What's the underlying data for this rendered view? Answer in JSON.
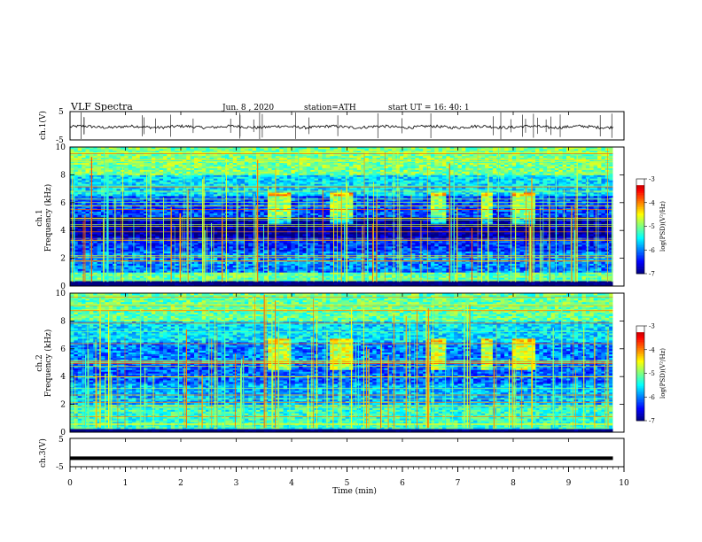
{
  "header": {
    "title": "VLF  Spectra",
    "date": "Jun. 8  , 2020",
    "station": "station=ATH",
    "start": "start  UT  =    16: 40: 1"
  },
  "chart_data": [
    {
      "type": "line",
      "name": "ch1-waveform",
      "ylabel": "ch.1(V)",
      "ylim": [
        -5,
        5
      ],
      "yticks": [
        "5",
        "-5"
      ],
      "xlim": [
        0,
        10
      ],
      "trace_mean_v": -0.4,
      "trace_noise_v": 0.5,
      "spike_count": 32
    },
    {
      "type": "heatmap",
      "name": "ch1-spectrogram",
      "ylabel": "ch.1\nFrequency (kHz)",
      "ylim": [
        0,
        10
      ],
      "yticks": [
        "0",
        "2",
        "4",
        "6",
        "8",
        "10"
      ],
      "xlim": [
        0,
        10
      ],
      "data_end_min": 9.8,
      "colorbar": {
        "label": "log(PSD)(V²/Hz)",
        "range": [
          -7,
          -3
        ],
        "ticks": [
          "-3",
          "-4",
          "-5",
          "-6",
          "-7"
        ]
      },
      "bands": [
        {
          "from_khz": 0.0,
          "to_khz": 0.35,
          "level": -7.2
        },
        {
          "from_khz": 0.35,
          "to_khz": 1.0,
          "level": -5.1
        },
        {
          "from_khz": 1.0,
          "to_khz": 2.5,
          "level": -6.0
        },
        {
          "from_khz": 2.5,
          "to_khz": 3.5,
          "level": -6.3
        },
        {
          "from_khz": 3.5,
          "to_khz": 5.0,
          "level": -6.9
        },
        {
          "from_khz": 5.0,
          "to_khz": 6.5,
          "level": -6.2
        },
        {
          "from_khz": 6.5,
          "to_khz": 8.0,
          "level": -5.6
        },
        {
          "from_khz": 8.0,
          "to_khz": 10.0,
          "level": -5.0
        }
      ],
      "bursts_min": [
        {
          "from": 3.6,
          "to": 4.0
        },
        {
          "from": 4.7,
          "to": 5.1
        },
        {
          "from": 6.5,
          "to": 6.8
        },
        {
          "from": 7.4,
          "to": 7.6
        },
        {
          "from": 8.0,
          "to": 8.4
        }
      ]
    },
    {
      "type": "heatmap",
      "name": "ch2-spectrogram",
      "ylabel": "ch.2\nFrequency (kHz)",
      "ylim": [
        0,
        10
      ],
      "yticks": [
        "0",
        "2",
        "4",
        "6",
        "8",
        "10"
      ],
      "xlim": [
        0,
        10
      ],
      "data_end_min": 9.8,
      "colorbar": {
        "label": "log(PSD)(V²/Hz)",
        "range": [
          -7,
          -3
        ],
        "ticks": [
          "-3",
          "-4",
          "-5",
          "-6",
          "-7"
        ]
      },
      "bands": [
        {
          "from_khz": 0.0,
          "to_khz": 0.3,
          "level": -7.2
        },
        {
          "from_khz": 0.3,
          "to_khz": 2.0,
          "level": -5.3
        },
        {
          "from_khz": 2.0,
          "to_khz": 3.5,
          "level": -5.8
        },
        {
          "from_khz": 3.5,
          "to_khz": 5.0,
          "level": -6.1
        },
        {
          "from_khz": 5.0,
          "to_khz": 6.5,
          "level": -6.0
        },
        {
          "from_khz": 6.5,
          "to_khz": 8.0,
          "level": -5.6
        },
        {
          "from_khz": 8.0,
          "to_khz": 10.0,
          "level": -5.1
        }
      ],
      "bursts_min": [
        {
          "from": 3.6,
          "to": 4.0
        },
        {
          "from": 4.7,
          "to": 5.1
        },
        {
          "from": 6.5,
          "to": 6.8
        },
        {
          "from": 7.4,
          "to": 7.6
        },
        {
          "from": 8.0,
          "to": 8.4
        }
      ]
    },
    {
      "type": "line",
      "name": "ch3-waveform",
      "ylabel": "ch.3(V)",
      "ylim": [
        -5,
        5
      ],
      "yticks": [
        "5",
        "-5"
      ],
      "xlim": [
        0,
        10
      ],
      "trace_mean_v": -2.0,
      "trace_noise_v": 0.1
    }
  ],
  "x_axis": {
    "label": "Time  (min)",
    "ticks": [
      "0",
      "1",
      "2",
      "3",
      "4",
      "5",
      "6",
      "7",
      "8",
      "9",
      "10"
    ]
  }
}
